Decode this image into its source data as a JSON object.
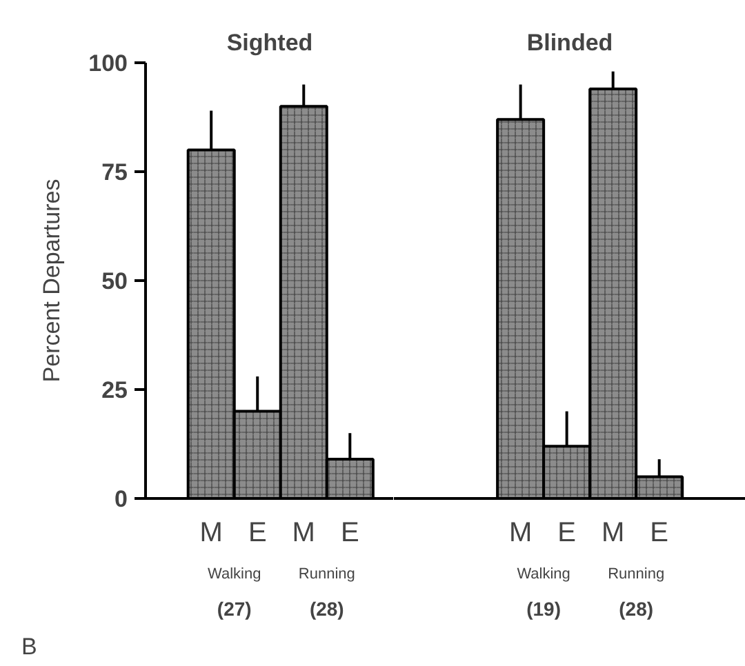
{
  "chart_data": [
    {
      "type": "bar",
      "title": "Sighted",
      "ylabel": "Percent Departures",
      "categories": [
        "M",
        "E",
        "M",
        "E"
      ],
      "series": [
        {
          "color": "#8c8c8c",
          "values": [
            80,
            20,
            90,
            9
          ],
          "errors": [
            [
              80,
              89
            ],
            [
              20,
              28
            ],
            [
              90,
              95
            ],
            [
              9,
              15
            ]
          ]
        }
      ],
      "ylim": [
        0,
        100
      ],
      "yticks": [
        0,
        25,
        50,
        75,
        100
      ],
      "grid": false,
      "annotations": [
        "Walking",
        "Running",
        "(27)",
        "(28)",
        "B"
      ]
    },
    {
      "type": "bar",
      "title": "Blinded",
      "categories": [
        "M",
        "E",
        "M",
        "E"
      ],
      "series": [
        {
          "color": "#8c8c8c",
          "values": [
            87,
            12,
            94,
            5
          ],
          "errors": [
            [
              87,
              95
            ],
            [
              12,
              20
            ],
            [
              94,
              98
            ],
            [
              5,
              9
            ]
          ]
        }
      ],
      "ylim": [
        0,
        100
      ],
      "yticks": [
        0,
        25,
        50,
        75,
        100
      ],
      "grid": false,
      "tick_labels": "x",
      "annotations": [
        "Walking",
        "Running",
        "(19)",
        "(28)"
      ]
    }
  ]
}
